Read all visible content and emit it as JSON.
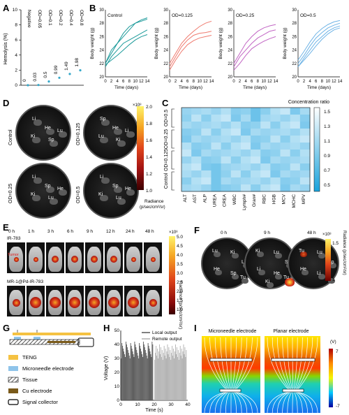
{
  "panels": {
    "A": "A",
    "B": "B",
    "C": "C",
    "D": "D",
    "E": "E",
    "F": "F",
    "G": "G",
    "H": "H",
    "I": "I"
  },
  "panel_a": {
    "ylabel": "Hemolysis (%)",
    "groups": [
      "Negative",
      "OD=0.05",
      "OD=0.1",
      "OD=0.2",
      "OD=0.4",
      "OD=0.8"
    ],
    "value_labels": [
      "0",
      "0.03",
      "0.5",
      "0.99",
      "1.49",
      "1.98"
    ],
    "values": [
      0,
      0.03,
      0.5,
      0.99,
      1.49,
      1.98
    ],
    "yticks": [
      "0",
      "2",
      "4",
      "6",
      "8",
      "10"
    ],
    "point_color": "#35a8c9"
  },
  "panel_b": {
    "ylabel": "Body weight (g)",
    "xlabel": "Time (days)",
    "xticks": [
      "0",
      "2",
      "4",
      "6",
      "8",
      "10",
      "12",
      "14"
    ],
    "yticks": [
      "20",
      "22",
      "24",
      "26",
      "28",
      "30"
    ],
    "subplots": [
      {
        "title": "Control",
        "color": "#1c9a9a"
      },
      {
        "title": "OD=0.125",
        "color": "#ef7a6e"
      },
      {
        "title": "OD=0.25",
        "color": "#c266c4"
      },
      {
        "title": "OD=0.5",
        "color": "#6fb4e6"
      }
    ]
  },
  "panel_c": {
    "colorbar_title": "Concentration ratio",
    "colorbar_ticks": [
      "1.5",
      "1.3",
      "1.1",
      "0.9",
      "0.7",
      "0.5"
    ],
    "row_labels": [
      "OD=0.5",
      "OD=0.25",
      "OD=0.125",
      "Control"
    ],
    "col_labels": [
      "ALT",
      "AST",
      "ALP",
      "UREA",
      "CREA",
      "WBC",
      "Lymph#",
      "Gran#",
      "RBC",
      "HGB",
      "MCV",
      "MCHC",
      "MPV"
    ]
  },
  "panel_d": {
    "dishes": [
      {
        "label": "Control",
        "organs": [
          "Li",
          "He",
          "Lu",
          "Ki",
          "Sp"
        ]
      },
      {
        "label": "OD=0.125",
        "organs": [
          "Sp",
          "He",
          "Li",
          "Lu",
          "Ki"
        ]
      },
      {
        "label": "OD=0.25",
        "organs": [
          "Li",
          "Sp",
          "He",
          "Ki",
          "Lu"
        ]
      },
      {
        "label": "OD=0.5",
        "organs": [
          "Li",
          "Sp",
          "He",
          "Ki",
          "Lu"
        ]
      }
    ],
    "colorbar_exp": "×10⁸",
    "colorbar_ticks": [
      "2.0",
      "1.8",
      "1.6",
      "1.4",
      "1.2",
      "1.0"
    ],
    "colorbar_label": "Radiance",
    "colorbar_unit": "(p/sec/cm²/sr)"
  },
  "panel_e": {
    "times": [
      "0 h",
      "1 h",
      "3 h",
      "6 h",
      "9 h",
      "12 h",
      "24 h",
      "48 h"
    ],
    "rows": [
      "IR-783",
      "MR-1@Pd-IR-783"
    ],
    "tumor_label": "Tumor",
    "colorbar_exp": "×10⁸",
    "colorbar_ticks": [
      "5.0",
      "4.5",
      "4.0",
      "3.5",
      "3.0",
      "2.5",
      "2.0",
      "1.5",
      "1.0"
    ],
    "colorbar_label": "Radiance (p/sec/cm²/sr)"
  },
  "panel_f": {
    "times": [
      "0 h",
      "9 h",
      "48 h"
    ],
    "dishes": [
      [
        "Lu",
        "Ki",
        "Li",
        "He",
        "Sp",
        "Tu"
      ],
      [
        "Ki",
        "Lu",
        "Sp",
        "Li",
        "He",
        "Tu",
        "Ki"
      ],
      [
        "Tu",
        "Lu",
        "Sp",
        "He",
        "Li",
        "Ki"
      ]
    ],
    "colorbar_exp": "×10⁸",
    "colorbar_ticks": [
      "1.5",
      "1"
    ],
    "colorbar_label": "Radiance (p/sec/cm²/sr)"
  },
  "panel_g": {
    "legend": [
      "TENG",
      "Microneedle electrode",
      "Tissue",
      "Cu electrode",
      "Signal collector"
    ],
    "colors": {
      "teng": "#f5c242",
      "microneedle": "#8fc4ea",
      "cu": "#7a5a1a"
    }
  },
  "panel_h": {
    "ylabel": "Voltage (V)",
    "xlabel": "Time (s)",
    "xticks": [
      "0",
      "10",
      "20",
      "30",
      "40"
    ],
    "yticks": [
      "0",
      "10",
      "20",
      "30",
      "40",
      "50"
    ],
    "legend": [
      "Local output",
      "Remote output"
    ],
    "colors": {
      "local": "#555555",
      "remote": "#b0b0b0"
    }
  },
  "panel_i": {
    "titles": [
      "Microneedle electrode",
      "Planar electrode"
    ],
    "colorbar_unit": "(V)",
    "colorbar_ticks": [
      "7",
      "-7"
    ]
  }
}
